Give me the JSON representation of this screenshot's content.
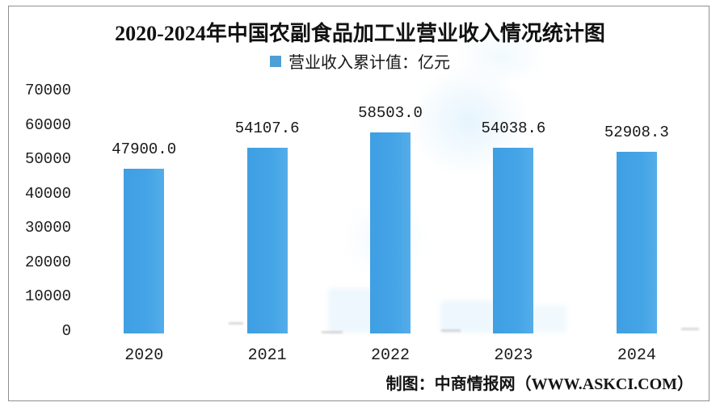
{
  "chart_data": {
    "type": "bar",
    "title": "2020-2024年中国农副食品加工业营业收入情况统计图",
    "categories": [
      "2020",
      "2021",
      "2022",
      "2023",
      "2024"
    ],
    "values": [
      47900.0,
      54107.6,
      58503.0,
      54038.6,
      52908.3
    ],
    "value_labels": [
      "47900.0",
      "54107.6",
      "58503.0",
      "54038.6",
      "52908.3"
    ],
    "legend": {
      "label": "营业收入累计值：亿元",
      "color": "#4e9fd6"
    },
    "unit": "亿元",
    "ylim": [
      0,
      70000
    ],
    "yticks": [
      0,
      10000,
      20000,
      30000,
      40000,
      50000,
      60000,
      70000
    ],
    "grid": false,
    "legend_position": "top",
    "bar_color": "#44a4e6",
    "frame_border_color": "#8f8f8f"
  },
  "footer": {
    "credit": "制图：中商情报网（WWW.ASKCI.COM）"
  }
}
